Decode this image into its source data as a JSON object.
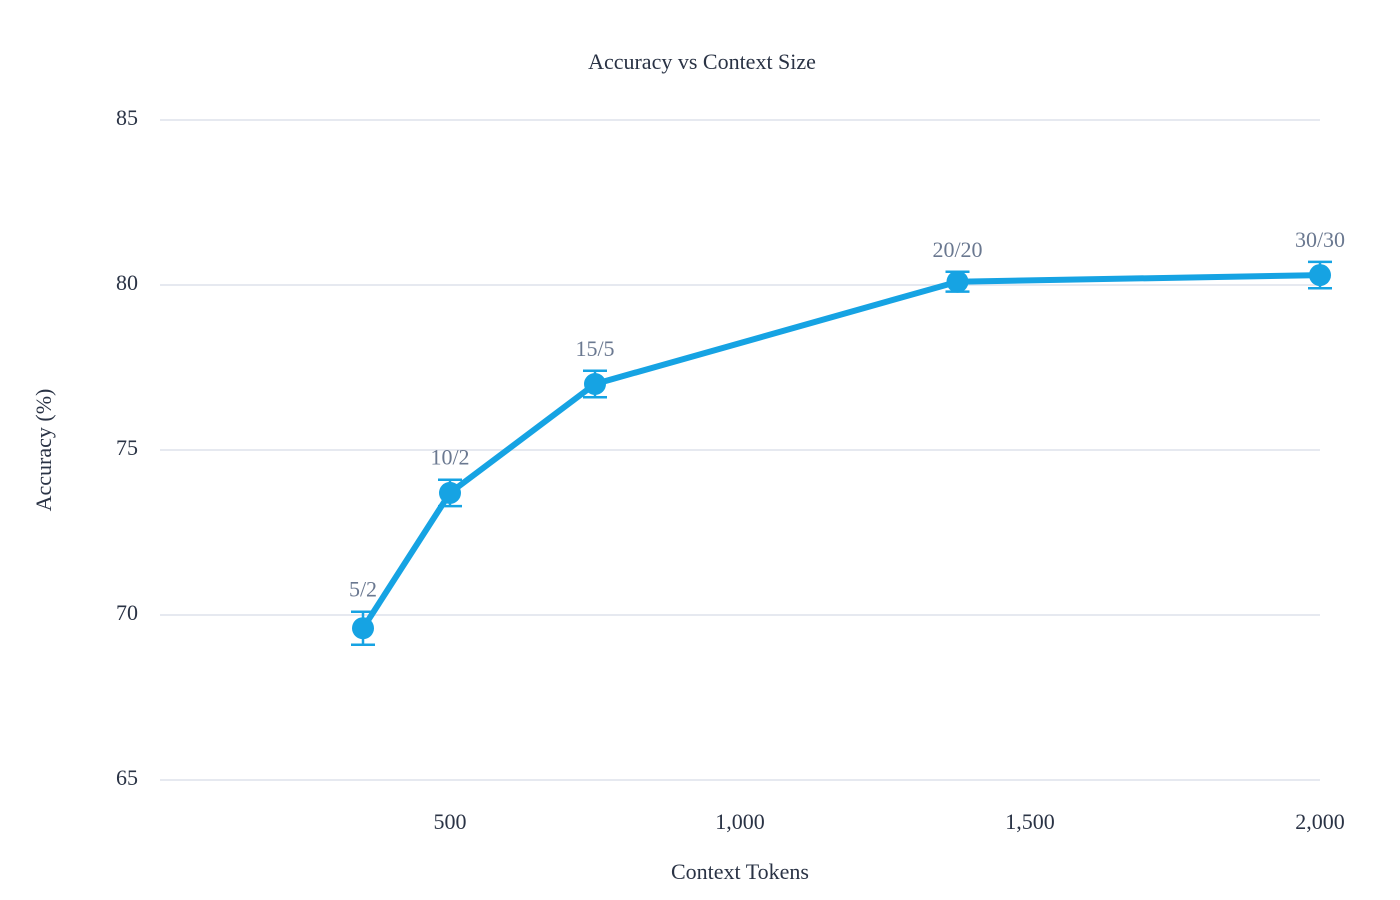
{
  "chart_data": {
    "type": "line",
    "title": "Accuracy vs Context Size",
    "x_label": "Context Tokens",
    "y_label": "Accuracy (%)",
    "x": [
      350,
      500,
      750,
      1375,
      2000
    ],
    "series": [
      {
        "color": "#16a3e3",
        "values": [
          69.6,
          73.7,
          77.0,
          80.1,
          80.3
        ],
        "errors": [
          0.5,
          0.4,
          0.4,
          0.3,
          0.4
        ],
        "point_labels": [
          "5/2",
          "10/2",
          "15/5",
          "20/20",
          "30/30"
        ]
      }
    ],
    "xlim": [
      0,
      2000
    ],
    "xticks": [
      500,
      {
        "value": 1000,
        "label": "1,000"
      },
      {
        "value": 1500,
        "label": "1,500"
      },
      {
        "value": 2000,
        "label": "2,000"
      }
    ],
    "ylim": [
      65,
      85
    ],
    "yticks": [
      65,
      70,
      75,
      80,
      85
    ],
    "grid": true
  }
}
